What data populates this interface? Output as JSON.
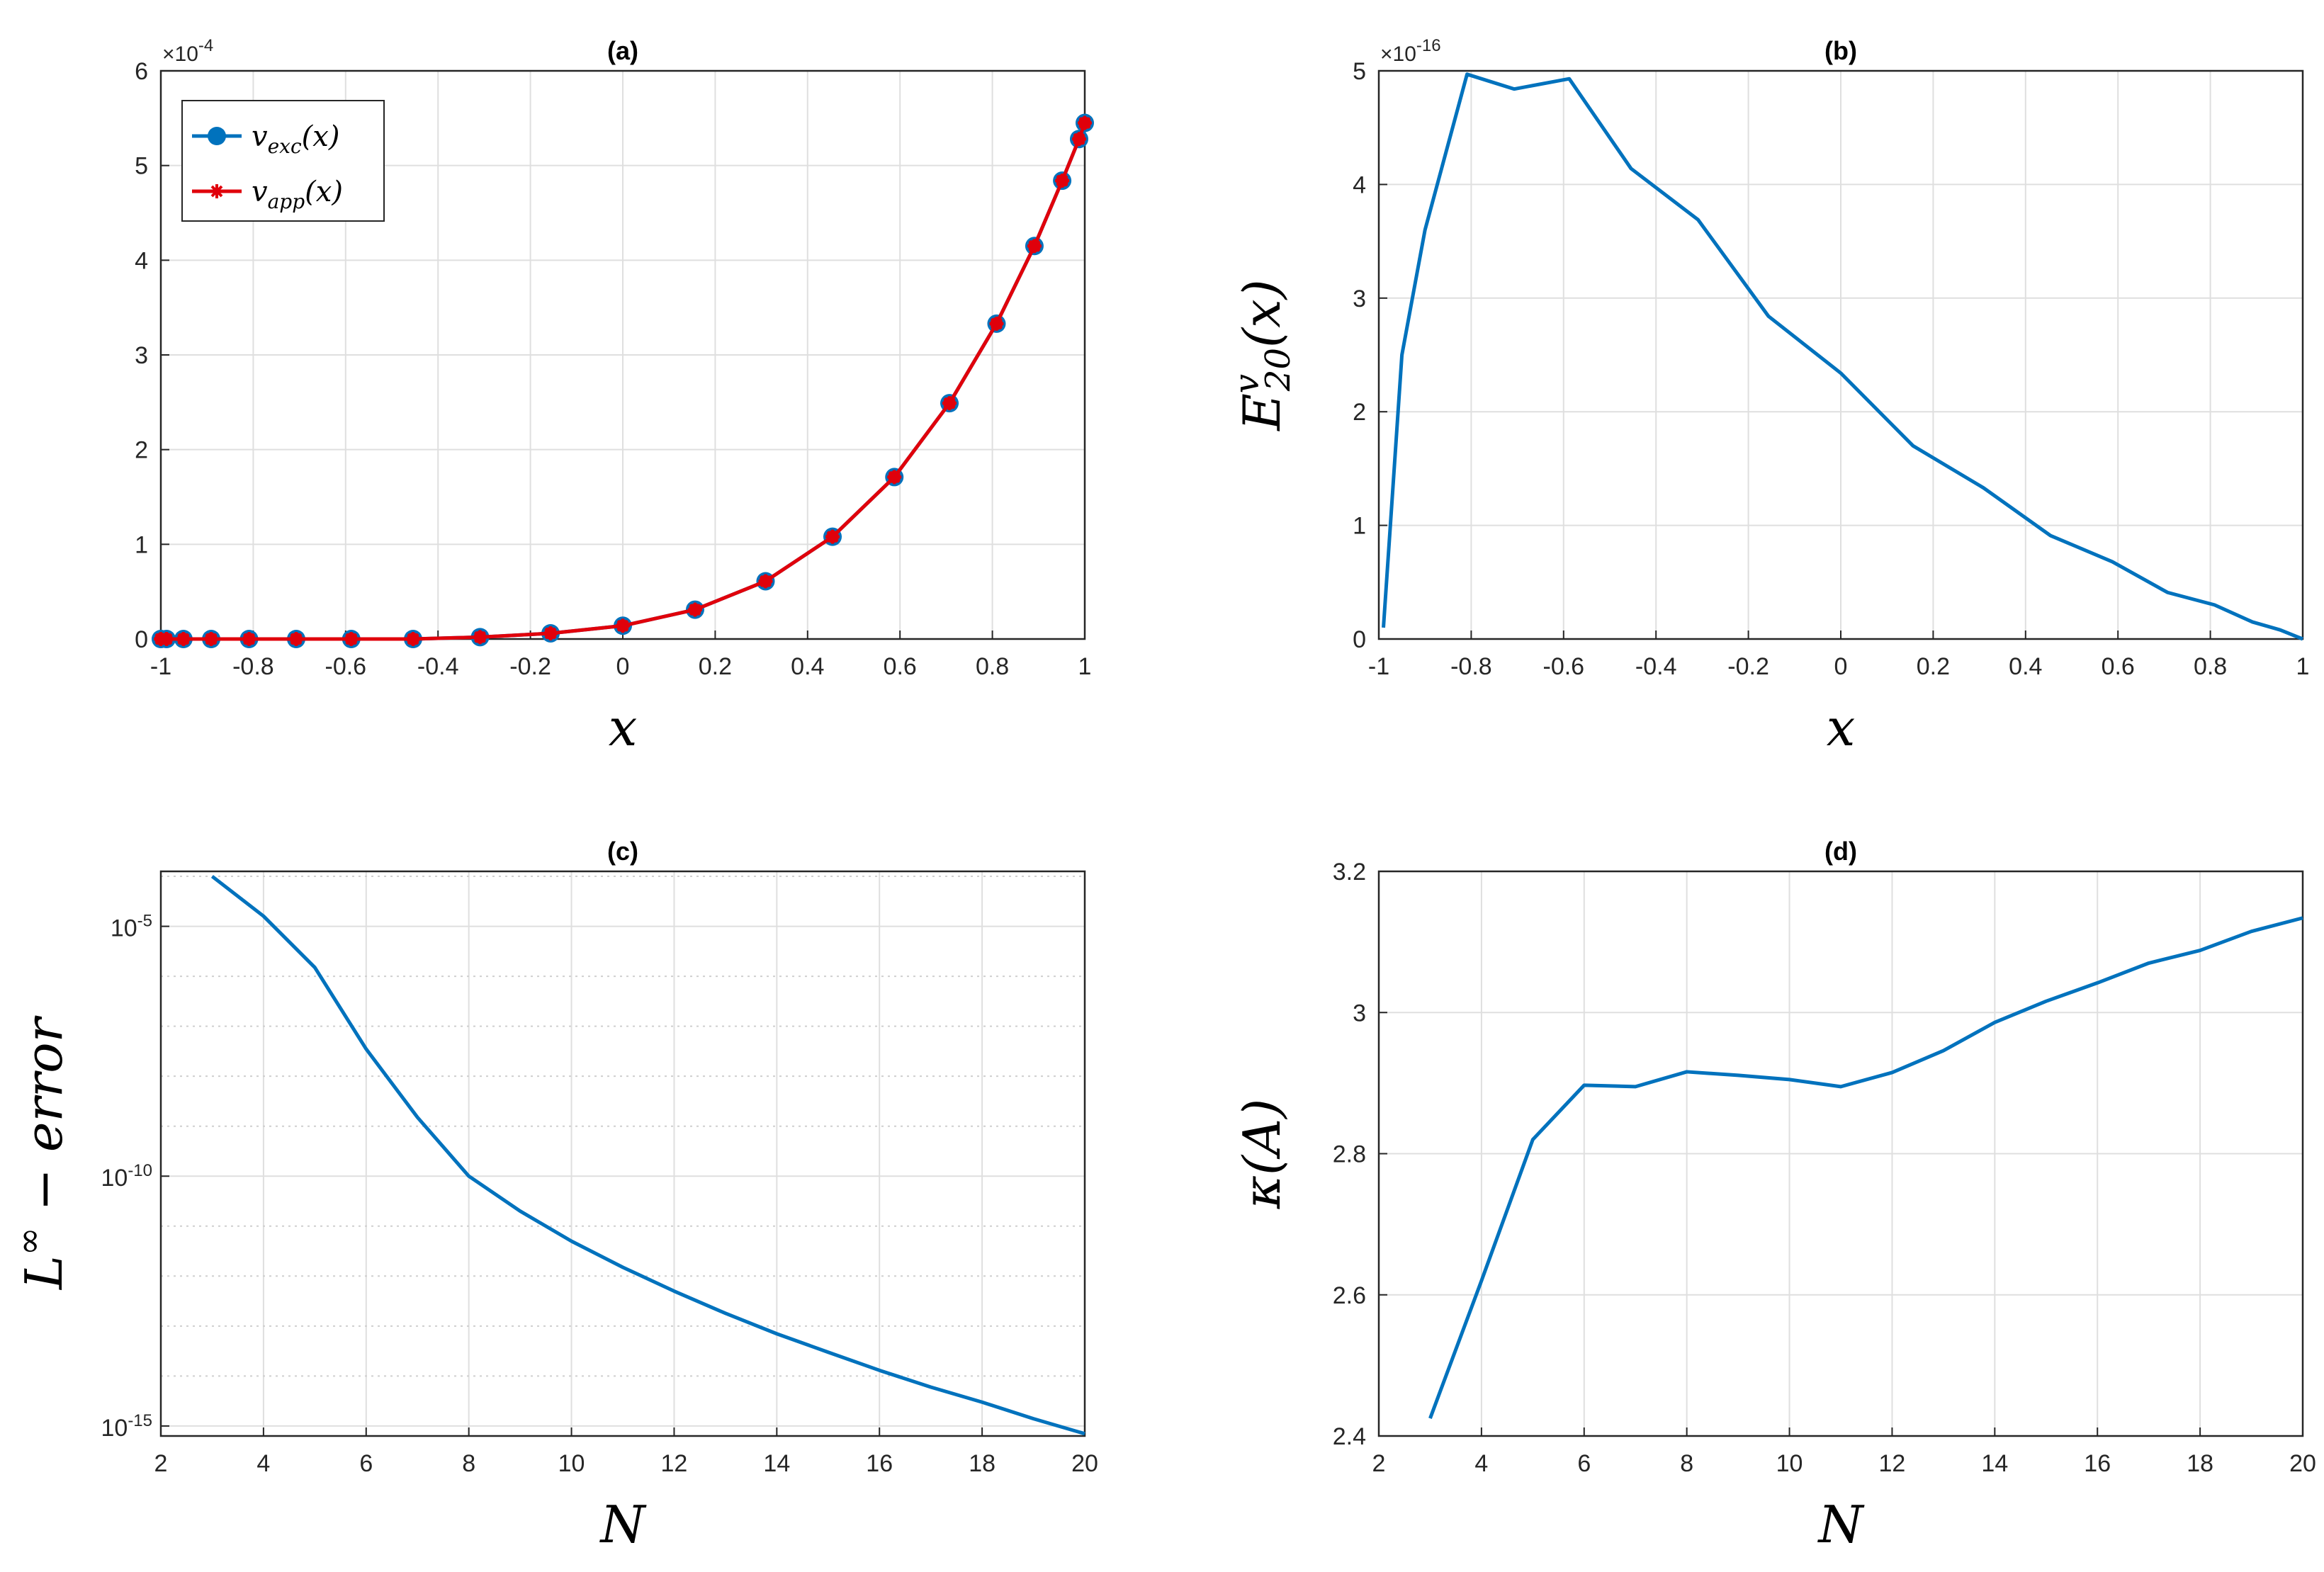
{
  "colors": {
    "blue": "#0072BD",
    "red": "#E0000B",
    "grid": "#DFDFDF",
    "axis": "#262626"
  },
  "chart_data": [
    {
      "type": "line",
      "title": "(a)",
      "xlabel": "x",
      "ylabel": "",
      "xlim": [
        -1,
        1
      ],
      "ylim": [
        0,
        0.0006
      ],
      "x_ticks": [
        -1,
        -0.8,
        -0.6,
        -0.4,
        -0.2,
        0,
        0.2,
        0.4,
        0.6,
        0.8,
        1
      ],
      "x_tick_labels": [
        "-1",
        "-0.8",
        "-0.6",
        "-0.4",
        "-0.2",
        "0",
        "0.2",
        "0.4",
        "0.6",
        "0.8",
        "1"
      ],
      "y_ticks": [
        0,
        1,
        2,
        3,
        4,
        5,
        6
      ],
      "y_tick_labels": [
        "0",
        "1",
        "2",
        "3",
        "4",
        "5",
        "6"
      ],
      "y_scale_multiplier": "×10",
      "y_scale_exponent": "-4",
      "grid": true,
      "legend": "top-left",
      "x": [
        -1,
        -0.9877,
        -0.9511,
        -0.891,
        -0.809,
        -0.7071,
        -0.5878,
        -0.454,
        -0.309,
        -0.1564,
        0,
        0.1564,
        0.309,
        0.454,
        0.5878,
        0.7071,
        0.809,
        0.891,
        0.9511,
        0.9877,
        1
      ],
      "series": [
        {
          "name": "v_exc(x)",
          "legend_base": "v",
          "legend_sub": "exc",
          "legend_tail": "(x)",
          "color": "#0072BD",
          "marker": "circle",
          "values": [
            0.0,
            0.0,
            0.0,
            0.0,
            0.0,
            0.0,
            0.0,
            0.0,
            2e-06,
            6e-06,
            1.4e-05,
            3.1e-05,
            6.1e-05,
            0.000108,
            0.000171,
            0.000249,
            0.000333,
            0.000415,
            0.000484,
            0.000528,
            0.000545
          ]
        },
        {
          "name": "v_app(x)",
          "legend_base": "v",
          "legend_sub": "app",
          "legend_tail": "(x)",
          "color": "#E0000B",
          "marker": "star",
          "values": [
            0.0,
            0.0,
            0.0,
            0.0,
            0.0,
            0.0,
            0.0,
            0.0,
            2e-06,
            6e-06,
            1.4e-05,
            3.1e-05,
            6.1e-05,
            0.000108,
            0.000171,
            0.000249,
            0.000333,
            0.000415,
            0.000484,
            0.000528,
            0.000545
          ]
        }
      ]
    },
    {
      "type": "line",
      "title": "(b)",
      "xlabel": "x",
      "ylabel": "E^v_20(x)",
      "ylabel_base": "E",
      "ylabel_sup": "v",
      "ylabel_sub": "20",
      "ylabel_tail": "(x)",
      "xlim": [
        -1,
        1
      ],
      "ylim": [
        0,
        5e-16
      ],
      "x_ticks": [
        -1,
        -0.8,
        -0.6,
        -0.4,
        -0.2,
        0,
        0.2,
        0.4,
        0.6,
        0.8,
        1
      ],
      "x_tick_labels": [
        "-1",
        "-0.8",
        "-0.6",
        "-0.4",
        "-0.2",
        "0",
        "0.2",
        "0.4",
        "0.6",
        "0.8",
        "1"
      ],
      "y_ticks": [
        0,
        1,
        2,
        3,
        4,
        5
      ],
      "y_tick_labels": [
        "0",
        "1",
        "2",
        "3",
        "4",
        "5"
      ],
      "y_scale_multiplier": "×10",
      "y_scale_exponent": "-16",
      "grid": true,
      "x": [
        -0.99,
        -0.95,
        -0.9,
        -0.809,
        -0.7071,
        -0.5878,
        -0.454,
        -0.309,
        -0.1564,
        0,
        0.1564,
        0.309,
        0.454,
        0.5878,
        0.7071,
        0.809,
        0.891,
        0.9511,
        0.9877,
        1
      ],
      "series": [
        {
          "color": "#0072BD",
          "values": [
            1e-17,
            2.5e-16,
            3.6e-16,
            4.97e-16,
            4.84e-16,
            4.93e-16,
            4.14e-16,
            3.69e-16,
            2.84e-16,
            2.34e-16,
            1.7e-16,
            1.33e-16,
            9.1e-17,
            6.8e-17,
            4.1e-17,
            3e-17,
            1.5e-17,
            8e-18,
            2e-18,
            0.0
          ]
        }
      ]
    },
    {
      "type": "line",
      "title": "(c)",
      "xlabel": "N",
      "ylabel": "L∞ − error",
      "ylabel_base": "L",
      "ylabel_sup": "∞",
      "ylabel_tail": " − error",
      "xlim": [
        2,
        20
      ],
      "ylim_log10": [
        -15.2,
        -3.9
      ],
      "log_scale_y": true,
      "x_ticks": [
        2,
        4,
        6,
        8,
        10,
        12,
        14,
        16,
        18,
        20
      ],
      "x_tick_labels": [
        "2",
        "4",
        "6",
        "8",
        "10",
        "12",
        "14",
        "16",
        "18",
        "20"
      ],
      "y_tick_exponents": [
        -5,
        -10,
        -15
      ],
      "y_tick_labels": [
        {
          "base": "10",
          "exp": "-5"
        },
        {
          "base": "10",
          "exp": "-10"
        },
        {
          "base": "10",
          "exp": "-15"
        }
      ],
      "grid": true,
      "x": [
        3,
        4,
        5,
        6,
        7,
        8,
        9,
        10,
        11,
        12,
        13,
        14,
        15,
        16,
        17,
        18,
        19,
        20
      ],
      "series": [
        {
          "color": "#0072BD",
          "values": [
            0.0001,
            1.6e-05,
            1.5e-06,
            3.5e-08,
            1.5e-09,
            1e-10,
            2e-11,
            5e-12,
            1.5e-12,
            5e-13,
            1.8e-13,
            7e-14,
            3e-14,
            1.3e-14,
            6e-15,
            3e-15,
            1.4e-15,
            7e-16
          ]
        }
      ]
    },
    {
      "type": "line",
      "title": "(d)",
      "xlabel": "N",
      "ylabel": "κ(A)",
      "xlim": [
        2,
        20
      ],
      "ylim": [
        2.4,
        3.2
      ],
      "x_ticks": [
        2,
        4,
        6,
        8,
        10,
        12,
        14,
        16,
        18,
        20
      ],
      "x_tick_labels": [
        "2",
        "4",
        "6",
        "8",
        "10",
        "12",
        "14",
        "16",
        "18",
        "20"
      ],
      "y_ticks": [
        2.4,
        2.6,
        2.8,
        3,
        3.2
      ],
      "y_tick_labels": [
        "2.4",
        "2.6",
        "2.8",
        "3",
        "3.2"
      ],
      "grid": true,
      "x": [
        3,
        4,
        5,
        6,
        7,
        8,
        9,
        10,
        11,
        12,
        13,
        14,
        15,
        16,
        17,
        18,
        19,
        20
      ],
      "series": [
        {
          "color": "#0072BD",
          "values": [
            2.425,
            2.62,
            2.82,
            2.897,
            2.895,
            2.916,
            2.911,
            2.905,
            2.895,
            2.915,
            2.946,
            2.986,
            3.016,
            3.042,
            3.07,
            3.088,
            3.115,
            3.134
          ]
        }
      ]
    }
  ]
}
